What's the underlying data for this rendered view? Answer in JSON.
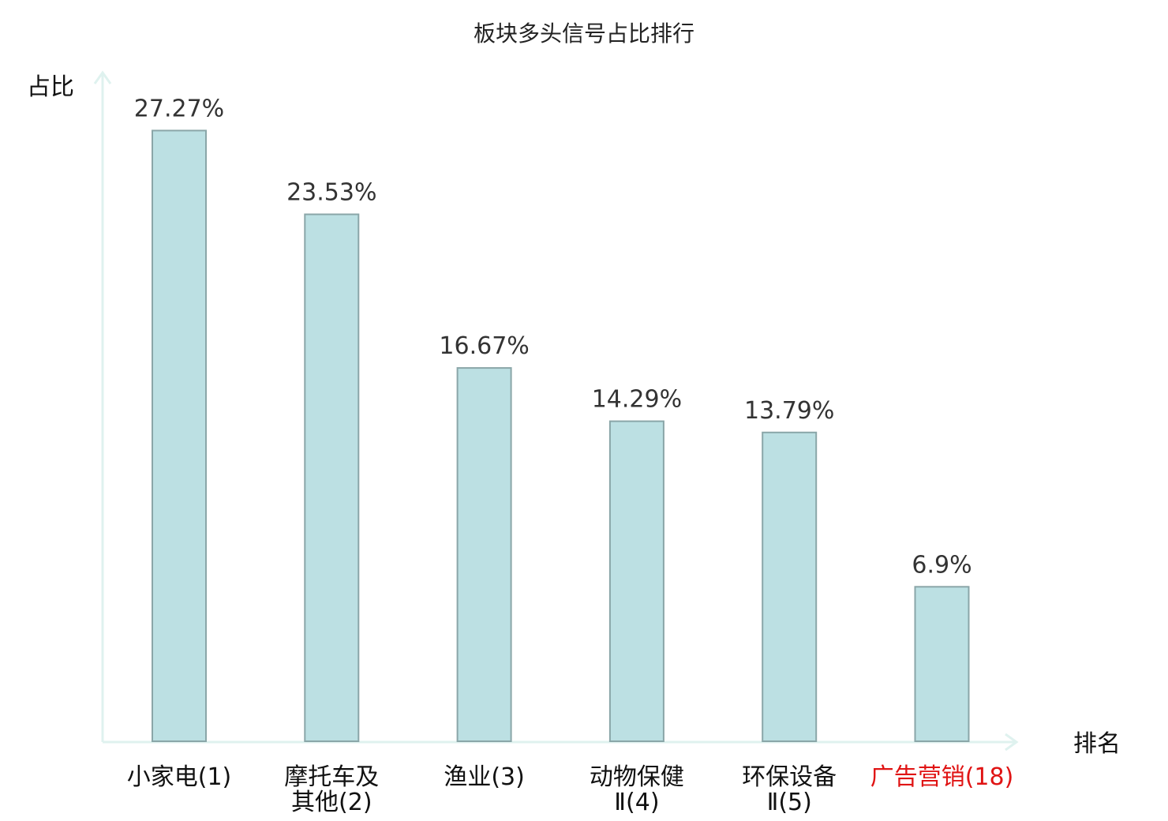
{
  "chart_data": {
    "type": "bar",
    "title": "板块多头信号占比排行",
    "ylabel": "占比",
    "xlabel": "排名",
    "ylim": [
      0,
      30
    ],
    "categories": [
      [
        "小家电(1)"
      ],
      [
        "摩托车及",
        "其他(2)"
      ],
      [
        "渔业(3)"
      ],
      [
        "动物保健",
        "Ⅱ(4)"
      ],
      [
        "环保设备",
        "Ⅱ(5)"
      ],
      [
        "广告营销(18)"
      ]
    ],
    "values": [
      27.27,
      23.53,
      16.67,
      14.29,
      13.79,
      6.9
    ],
    "value_labels": [
      "27.27%",
      "23.53%",
      "16.67%",
      "14.29%",
      "13.79%",
      "6.9%"
    ],
    "highlight_index": 5,
    "colors": {
      "bar_fill": "#bce0e3",
      "bar_stroke": "#8aa6a8",
      "axis": "#dff2ef",
      "highlight": "#e01414",
      "text": "#333333"
    }
  }
}
